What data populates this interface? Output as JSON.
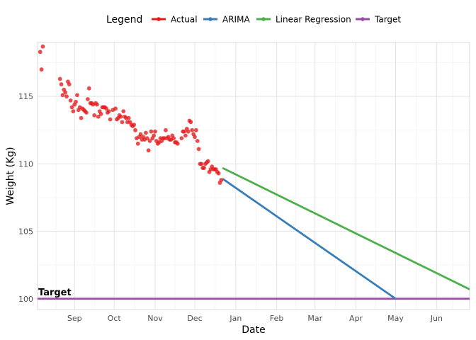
{
  "chart_data": {
    "type": "line",
    "xlabel": "Date",
    "ylabel": "Weight (Kg)",
    "xlim": [
      "2023-08-04",
      "2024-06-26"
    ],
    "ylim": [
      99.2,
      119.0
    ],
    "grid": true,
    "legend_placement": "top",
    "legend_title": "Legend",
    "x_ticks": [
      {
        "date": "2023-09-01",
        "label": "Sep"
      },
      {
        "date": "2023-10-01",
        "label": "Oct"
      },
      {
        "date": "2023-11-01",
        "label": "Nov"
      },
      {
        "date": "2023-12-01",
        "label": "Dec"
      },
      {
        "date": "2024-01-01",
        "label": "Jan"
      },
      {
        "date": "2024-02-01",
        "label": "Feb"
      },
      {
        "date": "2024-03-01",
        "label": "Mar"
      },
      {
        "date": "2024-04-01",
        "label": "Apr"
      },
      {
        "date": "2024-05-01",
        "label": "May"
      },
      {
        "date": "2024-06-01",
        "label": "Jun"
      }
    ],
    "y_ticks": [
      100,
      105,
      110,
      115
    ],
    "series": [
      {
        "name": "Actual",
        "kind": "scatter",
        "color": "#E41A1C",
        "points": [
          [
            "2023-08-06",
            118.3
          ],
          [
            "2023-08-07",
            117.0
          ],
          [
            "2023-08-08",
            118.7
          ],
          [
            "2023-08-21",
            116.3
          ],
          [
            "2023-08-22",
            115.9
          ],
          [
            "2023-08-23",
            115.1
          ],
          [
            "2023-08-24",
            115.5
          ],
          [
            "2023-08-25",
            115.3
          ],
          [
            "2023-08-26",
            115.0
          ],
          [
            "2023-08-27",
            116.1
          ],
          [
            "2023-08-28",
            115.9
          ],
          [
            "2023-08-29",
            114.7
          ],
          [
            "2023-08-30",
            114.2
          ],
          [
            "2023-08-31",
            113.9
          ],
          [
            "2023-09-01",
            114.4
          ],
          [
            "2023-09-02",
            114.6
          ],
          [
            "2023-09-03",
            115.1
          ],
          [
            "2023-09-04",
            114.0
          ],
          [
            "2023-09-05",
            114.2
          ],
          [
            "2023-09-06",
            113.4
          ],
          [
            "2023-09-07",
            114.1
          ],
          [
            "2023-09-08",
            114.0
          ],
          [
            "2023-09-09",
            113.9
          ],
          [
            "2023-09-10",
            113.8
          ],
          [
            "2023-09-11",
            114.8
          ],
          [
            "2023-09-12",
            115.6
          ],
          [
            "2023-09-13",
            114.5
          ],
          [
            "2023-09-14",
            114.5
          ],
          [
            "2023-09-15",
            114.4
          ],
          [
            "2023-09-16",
            113.6
          ],
          [
            "2023-09-17",
            114.5
          ],
          [
            "2023-09-18",
            114.4
          ],
          [
            "2023-09-19",
            113.5
          ],
          [
            "2023-09-20",
            113.9
          ],
          [
            "2023-09-21",
            113.7
          ],
          [
            "2023-09-22",
            114.2
          ],
          [
            "2023-09-23",
            114.2
          ],
          [
            "2023-09-24",
            114.2
          ],
          [
            "2023-09-25",
            114.1
          ],
          [
            "2023-09-26",
            113.8
          ],
          [
            "2023-09-27",
            113.9
          ],
          [
            "2023-09-28",
            113.3
          ],
          [
            "2023-09-30",
            114.0
          ],
          [
            "2023-10-02",
            114.1
          ],
          [
            "2023-10-03",
            113.3
          ],
          [
            "2023-10-04",
            113.4
          ],
          [
            "2023-10-05",
            113.6
          ],
          [
            "2023-10-06",
            113.5
          ],
          [
            "2023-10-07",
            113.1
          ],
          [
            "2023-10-08",
            113.9
          ],
          [
            "2023-10-09",
            113.5
          ],
          [
            "2023-10-10",
            113.4
          ],
          [
            "2023-10-11",
            113.1
          ],
          [
            "2023-10-12",
            113.4
          ],
          [
            "2023-10-13",
            113.1
          ],
          [
            "2023-10-14",
            112.9
          ],
          [
            "2023-10-15",
            112.8
          ],
          [
            "2023-10-16",
            112.9
          ],
          [
            "2023-10-17",
            112.5
          ],
          [
            "2023-10-18",
            111.9
          ],
          [
            "2023-10-19",
            111.5
          ],
          [
            "2023-10-20",
            112.0
          ],
          [
            "2023-10-21",
            112.2
          ],
          [
            "2023-10-22",
            111.8
          ],
          [
            "2023-10-23",
            112.0
          ],
          [
            "2023-10-24",
            111.8
          ],
          [
            "2023-10-25",
            112.3
          ],
          [
            "2023-10-26",
            111.9
          ],
          [
            "2023-10-27",
            111.0
          ],
          [
            "2023-10-28",
            111.7
          ],
          [
            "2023-10-29",
            112.4
          ],
          [
            "2023-10-30",
            111.9
          ],
          [
            "2023-10-31",
            112.1
          ],
          [
            "2023-11-01",
            112.4
          ],
          [
            "2023-11-02",
            111.7
          ],
          [
            "2023-11-03",
            111.5
          ],
          [
            "2023-11-04",
            111.6
          ],
          [
            "2023-11-05",
            111.9
          ],
          [
            "2023-11-06",
            111.7
          ],
          [
            "2023-11-07",
            111.9
          ],
          [
            "2023-11-08",
            111.9
          ],
          [
            "2023-11-09",
            112.5
          ],
          [
            "2023-11-10",
            111.9
          ],
          [
            "2023-11-11",
            112.0
          ],
          [
            "2023-11-12",
            111.8
          ],
          [
            "2023-11-13",
            111.8
          ],
          [
            "2023-11-14",
            112.1
          ],
          [
            "2023-11-15",
            111.9
          ],
          [
            "2023-11-16",
            111.6
          ],
          [
            "2023-11-17",
            111.6
          ],
          [
            "2023-11-18",
            111.5
          ],
          [
            "2023-11-21",
            111.9
          ],
          [
            "2023-11-22",
            112.4
          ],
          [
            "2023-11-23",
            112.4
          ],
          [
            "2023-11-24",
            112.1
          ],
          [
            "2023-11-25",
            112.6
          ],
          [
            "2023-11-26",
            112.4
          ],
          [
            "2023-11-27",
            113.2
          ],
          [
            "2023-11-28",
            113.1
          ],
          [
            "2023-11-29",
            112.5
          ],
          [
            "2023-11-30",
            112.2
          ],
          [
            "2023-12-01",
            112.0
          ],
          [
            "2023-12-02",
            112.5
          ],
          [
            "2023-12-03",
            111.7
          ],
          [
            "2023-12-04",
            111.1
          ],
          [
            "2023-12-05",
            110.0
          ],
          [
            "2023-12-06",
            110.0
          ],
          [
            "2023-12-07",
            109.7
          ],
          [
            "2023-12-08",
            109.7
          ],
          [
            "2023-12-09",
            110.0
          ],
          [
            "2023-12-10",
            110.1
          ],
          [
            "2023-12-11",
            110.2
          ],
          [
            "2023-12-12",
            109.4
          ],
          [
            "2023-12-13",
            109.6
          ],
          [
            "2023-12-14",
            109.8
          ],
          [
            "2023-12-15",
            109.6
          ],
          [
            "2023-12-16",
            109.6
          ],
          [
            "2023-12-17",
            109.6
          ],
          [
            "2023-12-18",
            109.4
          ],
          [
            "2023-12-19",
            109.3
          ],
          [
            "2023-12-20",
            108.6
          ],
          [
            "2023-12-21",
            108.8
          ]
        ]
      },
      {
        "name": "ARIMA",
        "kind": "line",
        "color": "#377EB8",
        "points": [
          [
            "2023-12-22",
            108.9
          ],
          [
            "2024-05-01",
            100.0
          ]
        ]
      },
      {
        "name": "Linear Regression",
        "kind": "line",
        "color": "#4DAF4A",
        "points": [
          [
            "2023-12-22",
            109.7
          ],
          [
            "2024-06-26",
            100.7
          ]
        ]
      },
      {
        "name": "Target",
        "kind": "line",
        "color": "#984EA3",
        "points": [
          [
            "2023-08-04",
            100.0
          ],
          [
            "2024-06-26",
            100.0
          ]
        ]
      }
    ],
    "annotations": [
      {
        "text": "Target",
        "date": "2023-08-04",
        "y": 100.0
      }
    ]
  }
}
